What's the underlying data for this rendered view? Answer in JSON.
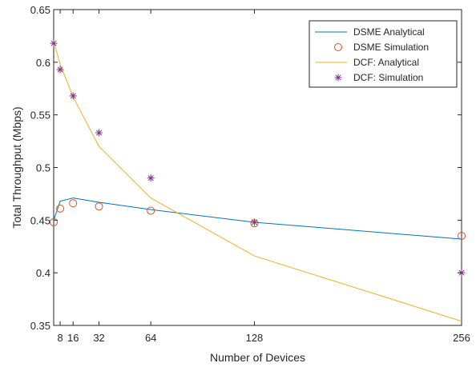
{
  "chart_data": {
    "type": "line",
    "xlabel": "Number of Devices",
    "ylabel": "Total Throughput (Mbps)",
    "xlim": [
      4,
      256
    ],
    "ylim": [
      0.35,
      0.65
    ],
    "x_ticks": [
      8,
      16,
      32,
      64,
      128,
      256
    ],
    "x_tick_labels": [
      "8",
      "16",
      "32",
      "64",
      "128",
      "256"
    ],
    "y_ticks": [
      0.35,
      0.4,
      0.45,
      0.5,
      0.55,
      0.6,
      0.65
    ],
    "y_tick_labels": [
      "0.35",
      "0.4",
      "0.45",
      "0.5",
      "0.55",
      "0.6",
      "0.65"
    ],
    "grid": false,
    "legend_position": "top-right",
    "series": [
      {
        "name": "DSME Analytical",
        "style": "line",
        "color": "#0072BD",
        "x": [
          4,
          8,
          16,
          32,
          64,
          128,
          256
        ],
        "y": [
          0.45,
          0.468,
          0.471,
          0.467,
          0.46,
          0.448,
          0.432
        ]
      },
      {
        "name": "DSME Simulation",
        "style": "circle",
        "color": "#D95319",
        "x": [
          4,
          8,
          16,
          32,
          64,
          128,
          256
        ],
        "y": [
          0.448,
          0.461,
          0.466,
          0.463,
          0.459,
          0.447,
          0.435
        ]
      },
      {
        "name": "DCF: Analytical",
        "style": "line",
        "color": "#EDB120",
        "x": [
          4,
          8,
          16,
          32,
          64,
          128,
          256
        ],
        "y": [
          0.62,
          0.598,
          0.567,
          0.52,
          0.471,
          0.416,
          0.354
        ]
      },
      {
        "name": "DCF: Simulation",
        "style": "asterisk",
        "color": "#7E2F8E",
        "x": [
          4,
          8,
          16,
          32,
          64,
          128,
          256
        ],
        "y": [
          0.618,
          0.593,
          0.568,
          0.533,
          0.49,
          0.448,
          0.4
        ]
      }
    ]
  }
}
